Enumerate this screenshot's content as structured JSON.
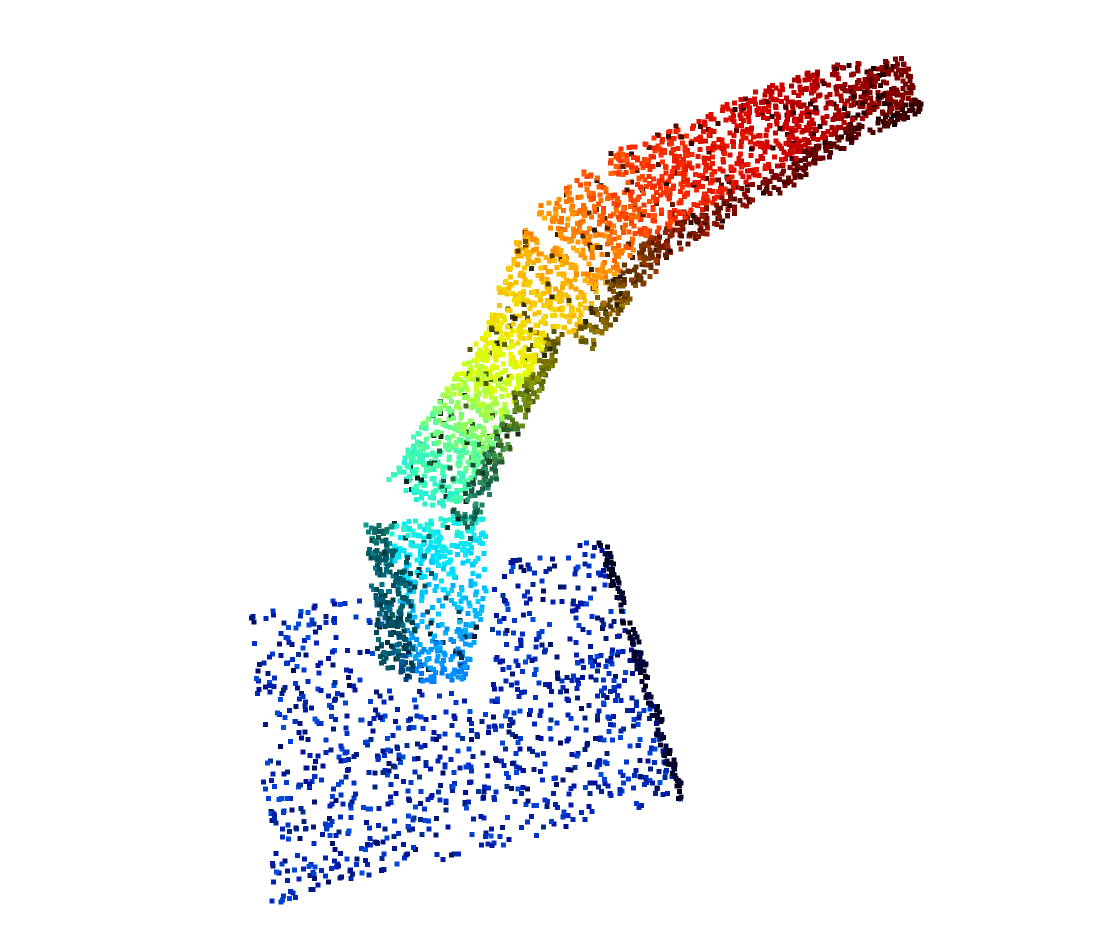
{
  "scene": {
    "kind": "3d-point-cloud",
    "subject": "robot-arm-on-plane",
    "background": "#ffffff",
    "colormap": "jet",
    "colormap_stops": [
      "#000080",
      "#0033cc",
      "#0080ff",
      "#00e5ff",
      "#55ff99",
      "#e6ff00",
      "#ffb000",
      "#ff3300",
      "#d00000",
      "#700000"
    ],
    "shade_color": "#000000",
    "segments": [
      {
        "name": "ground-plane",
        "color_range": [
          0.0,
          0.18
        ]
      },
      {
        "name": "gripper-base",
        "color_range": [
          0.22,
          0.38
        ]
      },
      {
        "name": "lower-link",
        "color_range": [
          0.38,
          0.62
        ]
      },
      {
        "name": "upper-link",
        "color_range": [
          0.62,
          0.82
        ]
      },
      {
        "name": "end-segment",
        "color_range": [
          0.82,
          1.0
        ]
      }
    ]
  }
}
